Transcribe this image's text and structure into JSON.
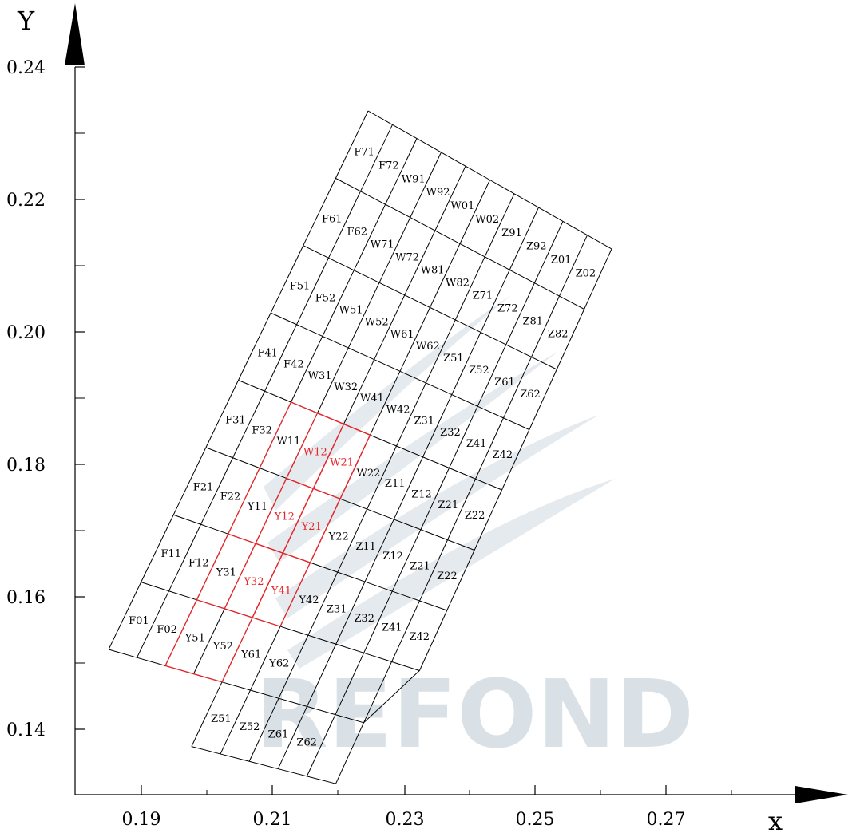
{
  "axes": {
    "x_label": "x",
    "y_label": "Y",
    "x_ticks": [
      "0.19",
      "0.21",
      "0.23",
      "0.25",
      "0.27"
    ],
    "y_ticks": [
      "0.24",
      "0.22",
      "0.20",
      "0.18",
      "0.16",
      "0.14"
    ]
  },
  "watermark": "REFOND",
  "colors": {
    "grid": "#000000",
    "highlight": "#e8262a",
    "watermark": "#d9e0e6"
  },
  "labels": [
    {
      "text": "F71",
      "col": 0,
      "row": 8
    },
    {
      "text": "F72",
      "col": 1,
      "row": 8
    },
    {
      "text": "W91",
      "col": 2,
      "row": 8
    },
    {
      "text": "W92",
      "col": 3,
      "row": 8
    },
    {
      "text": "W01",
      "col": 4,
      "row": 8
    },
    {
      "text": "W02",
      "col": 5,
      "row": 8
    },
    {
      "text": "Z91",
      "col": 6,
      "row": 8
    },
    {
      "text": "Z92",
      "col": 7,
      "row": 8
    },
    {
      "text": "Z01",
      "col": 8,
      "row": 8
    },
    {
      "text": "Z02",
      "col": 9,
      "row": 8
    },
    {
      "text": "F61",
      "col": 0,
      "row": 7
    },
    {
      "text": "F62",
      "col": 1,
      "row": 7
    },
    {
      "text": "W71",
      "col": 2,
      "row": 7
    },
    {
      "text": "W72",
      "col": 3,
      "row": 7
    },
    {
      "text": "W81",
      "col": 4,
      "row": 7
    },
    {
      "text": "W82",
      "col": 5,
      "row": 7
    },
    {
      "text": "Z71",
      "col": 6,
      "row": 7
    },
    {
      "text": "Z72",
      "col": 7,
      "row": 7
    },
    {
      "text": "Z81",
      "col": 8,
      "row": 7
    },
    {
      "text": "Z82",
      "col": 9,
      "row": 7
    },
    {
      "text": "F51",
      "col": 0,
      "row": 6
    },
    {
      "text": "F52",
      "col": 1,
      "row": 6
    },
    {
      "text": "W51",
      "col": 2,
      "row": 6
    },
    {
      "text": "W52",
      "col": 3,
      "row": 6
    },
    {
      "text": "W61",
      "col": 4,
      "row": 6
    },
    {
      "text": "W62",
      "col": 5,
      "row": 6
    },
    {
      "text": "Z51",
      "col": 6,
      "row": 6
    },
    {
      "text": "Z52",
      "col": 7,
      "row": 6
    },
    {
      "text": "Z61",
      "col": 8,
      "row": 6
    },
    {
      "text": "Z62",
      "col": 9,
      "row": 6
    },
    {
      "text": "F41",
      "col": 0,
      "row": 5
    },
    {
      "text": "F42",
      "col": 1,
      "row": 5
    },
    {
      "text": "W31",
      "col": 2,
      "row": 5
    },
    {
      "text": "W32",
      "col": 3,
      "row": 5
    },
    {
      "text": "W41",
      "col": 4,
      "row": 5
    },
    {
      "text": "W42",
      "col": 5,
      "row": 5
    },
    {
      "text": "Z31",
      "col": 6,
      "row": 5
    },
    {
      "text": "Z32",
      "col": 7,
      "row": 5
    },
    {
      "text": "Z41",
      "col": 8,
      "row": 5
    },
    {
      "text": "Z42",
      "col": 9,
      "row": 5
    },
    {
      "text": "F31",
      "col": 0,
      "row": 4
    },
    {
      "text": "F32",
      "col": 1,
      "row": 4
    },
    {
      "text": "W11",
      "col": 2,
      "row": 4
    },
    {
      "text": "W12",
      "col": 3,
      "row": 4,
      "hl": true
    },
    {
      "text": "W21",
      "col": 4,
      "row": 4,
      "hl": true
    },
    {
      "text": "W22",
      "col": 5,
      "row": 4
    },
    {
      "text": "Z11",
      "col": 6,
      "row": 4
    },
    {
      "text": "Z12",
      "col": 7,
      "row": 4
    },
    {
      "text": "Z21",
      "col": 8,
      "row": 4
    },
    {
      "text": "Z22",
      "col": 9,
      "row": 4
    },
    {
      "text": "F21",
      "col": 0,
      "row": 3
    },
    {
      "text": "F22",
      "col": 1,
      "row": 3
    },
    {
      "text": "Y11",
      "col": 2,
      "row": 3
    },
    {
      "text": "Y12",
      "col": 3,
      "row": 3,
      "hl": true
    },
    {
      "text": "Y21",
      "col": 4,
      "row": 3,
      "hl": true
    },
    {
      "text": "Y22",
      "col": 5,
      "row": 3
    },
    {
      "text": "Z11",
      "col": 6,
      "row": 3
    },
    {
      "text": "Z12",
      "col": 7,
      "row": 3
    },
    {
      "text": "Z21",
      "col": 8,
      "row": 3
    },
    {
      "text": "Z22",
      "col": 9,
      "row": 3
    },
    {
      "text": "F11",
      "col": 0,
      "row": 2
    },
    {
      "text": "F12",
      "col": 1,
      "row": 2
    },
    {
      "text": "Y31",
      "col": 2,
      "row": 2
    },
    {
      "text": "Y32",
      "col": 3,
      "row": 2,
      "hl": true
    },
    {
      "text": "Y41",
      "col": 4,
      "row": 2,
      "hl": true
    },
    {
      "text": "Y42",
      "col": 5,
      "row": 2
    },
    {
      "text": "Z31",
      "col": 6,
      "row": 2
    },
    {
      "text": "Z32",
      "col": 7,
      "row": 2
    },
    {
      "text": "Z41",
      "col": 8,
      "row": 2
    },
    {
      "text": "Z42",
      "col": 9,
      "row": 2
    },
    {
      "text": "F01",
      "col": 0,
      "row": 1
    },
    {
      "text": "F02",
      "col": 1,
      "row": 1
    },
    {
      "text": "Y51",
      "col": 2,
      "row": 1
    },
    {
      "text": "Y52",
      "col": 3,
      "row": 1
    },
    {
      "text": "Y61",
      "col": 4,
      "row": 1
    },
    {
      "text": "Y62",
      "col": 5,
      "row": 1
    },
    {
      "text": "Z51",
      "col": 4,
      "row": 0
    },
    {
      "text": "Z52",
      "col": 5,
      "row": 0
    },
    {
      "text": "Z61",
      "col": 6,
      "row": 0
    },
    {
      "text": "Z62",
      "col": 7,
      "row": 0
    }
  ]
}
